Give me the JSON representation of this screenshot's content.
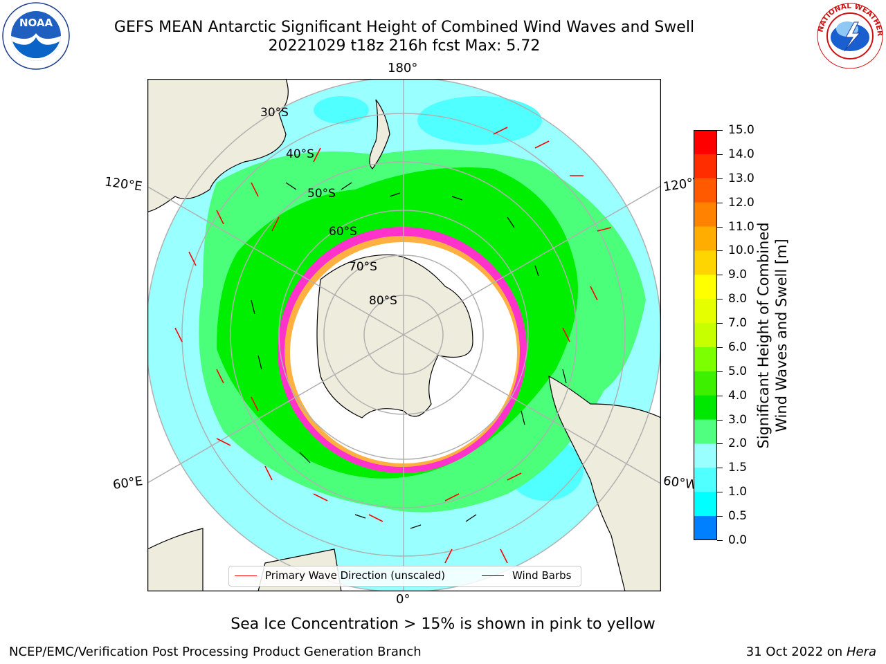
{
  "header": {
    "title_line1": "GEFS MEAN Antarctic Significant Height of Combined Wind Waves and Swell",
    "title_line2": "20221029 t18z 216h fcst   Max: 5.72"
  },
  "logos": {
    "noaa": {
      "name": "NOAA",
      "text": "NOAA",
      "ring_text": "NATIONAL OCEANIC AND ATMOSPHERIC ADMINISTRATION · U.S. DEPARTMENT OF COMMERCE"
    },
    "nws": {
      "name": "National Weather Service",
      "ring_text": "NATIONAL WEATHER SERVICE"
    }
  },
  "map": {
    "projection": "south polar stereographic",
    "longitude_labels": {
      "top": "180°",
      "bottom": "0°",
      "left_upper": "120°E",
      "left_lower": "60°E",
      "right_upper": "120°W",
      "right_lower": "60°W"
    },
    "latitude_labels": [
      "30°S",
      "40°S",
      "50°S",
      "60°S",
      "70°S",
      "80°S"
    ],
    "colors": {
      "land": "#eeecdc",
      "ocean_low": "#99ffff",
      "ocean_mid": "#4cff7a",
      "ocean_high": "#00ee00",
      "sea_ice_edge": "#ff33cc",
      "wave_arrows": "#ff0000",
      "wind_barbs": "#000000",
      "gridlines": "#b0b0b0"
    }
  },
  "colorbar": {
    "label_line1": "Significant Height of Combined",
    "label_line2": "Wind Waves and Swell [m]",
    "ticks": [
      "15.0",
      "14.0",
      "13.0",
      "12.0",
      "11.0",
      "10.0",
      "9.0",
      "8.0",
      "7.0",
      "6.0",
      "5.0",
      "4.0",
      "3.0",
      "2.0",
      "1.5",
      "1.0",
      "0.5",
      "0.0"
    ],
    "colors": [
      "#ff0000",
      "#ff2d00",
      "#ff5a00",
      "#ff8200",
      "#ffae00",
      "#ffd500",
      "#ffff00",
      "#e6ff00",
      "#c8ff00",
      "#7cff00",
      "#3cf000",
      "#00e800",
      "#50ff80",
      "#99ffff",
      "#50ffff",
      "#00ffff",
      "#0080ff",
      "#0000ff"
    ]
  },
  "legend": {
    "primary_wave": "Primary Wave Direction (unscaled)",
    "wind_barbs": "Wind Barbs"
  },
  "subtitle": "Sea Ice Concentration > 15% is shown in pink to yellow",
  "footer": {
    "left": "NCEP/EMC/Verification Post Processing Product Generation Branch",
    "right_date": "31 Oct 2022 on ",
    "right_machine": "Hera"
  }
}
